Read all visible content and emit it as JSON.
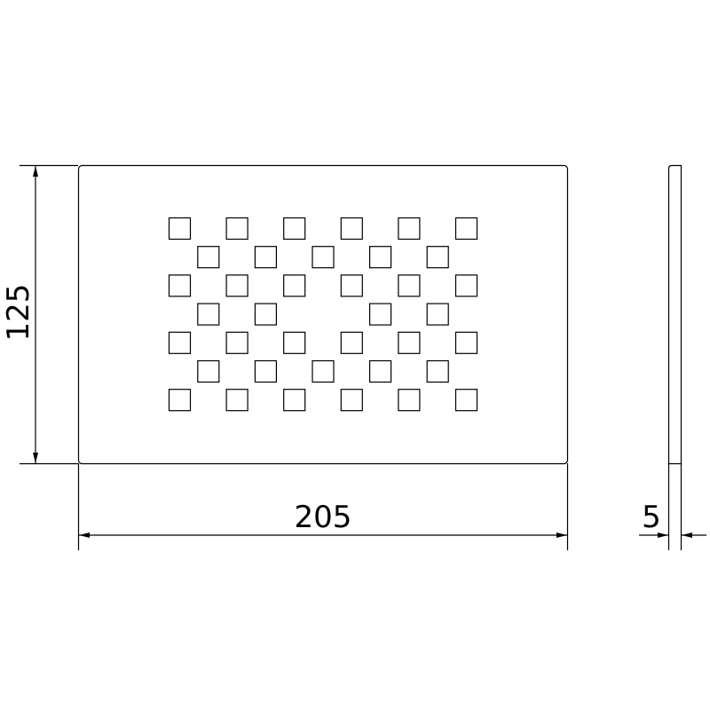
{
  "dimensions": {
    "height_label": "125",
    "width_label": "205",
    "thickness_label": "5"
  },
  "colors": {
    "line": "#000000",
    "background": "#ffffff"
  },
  "hole_pattern": {
    "shape": "square",
    "rows": [
      [
        1,
        1,
        1,
        1,
        1,
        1
      ],
      [
        1,
        1,
        1,
        1,
        1
      ],
      [
        1,
        1,
        1,
        1,
        1,
        1
      ],
      [
        1,
        1,
        0,
        1,
        1
      ],
      [
        1,
        1,
        1,
        1,
        1,
        1
      ],
      [
        1,
        1,
        1,
        1,
        1
      ],
      [
        1,
        1,
        1,
        1,
        1,
        1
      ]
    ]
  }
}
